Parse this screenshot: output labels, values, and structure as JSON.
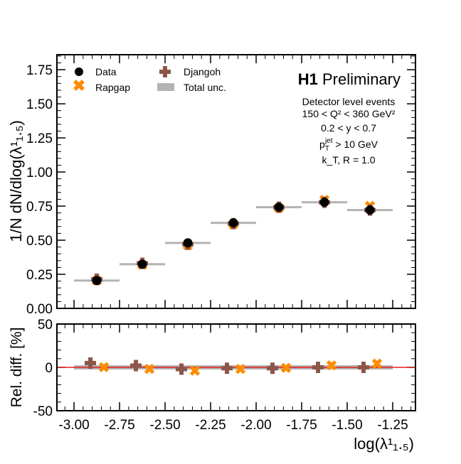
{
  "chart_data": {
    "type": "scatter",
    "title": "H1 Preliminary",
    "title_bold": "H1",
    "title_rest": "Preliminary",
    "annotations": [
      "Detector level events",
      "150 < Q² < 360 GeV²",
      "0.2 < y < 0.7",
      "p_T^jet > 10 GeV",
      "k_T, R = 1.0"
    ],
    "xlabel": "log(λ¹₁.₅)",
    "ylabel": "1/N dN/dlog(λ¹₁.₅)",
    "ratio_ylabel": "Rel. diff. [%]",
    "xlim": [
      -3.094,
      -1.125
    ],
    "ylim": [
      0,
      1.86
    ],
    "ratio_ylim": [
      -50,
      50
    ],
    "xticks": [
      "-3.00",
      "-2.75",
      "-2.50",
      "-2.25",
      "-2.00",
      "-1.75",
      "-1.50",
      "-1.25"
    ],
    "xtick_values": [
      -3.0,
      -2.75,
      -2.5,
      -2.25,
      -2.0,
      -1.75,
      -1.5,
      -1.25
    ],
    "yticks": [
      "0.00",
      "0.25",
      "0.50",
      "0.75",
      "1.00",
      "1.25",
      "1.50",
      "1.75"
    ],
    "ytick_values": [
      0,
      0.25,
      0.5,
      0.75,
      1.0,
      1.25,
      1.5,
      1.75
    ],
    "ratio_yticks": [
      "50",
      "0",
      "-50"
    ],
    "ratio_ytick_values": [
      50,
      0,
      -50
    ],
    "bin_edges": [
      -3.0,
      -2.75,
      -2.5,
      -2.25,
      -2.0,
      -1.75,
      -1.5,
      -1.25
    ],
    "legend": {
      "placement": "top-left",
      "entries": [
        "Data",
        "Rapgap",
        "Djangoh",
        "Total unc."
      ]
    },
    "series": [
      {
        "name": "Data",
        "color": "#000000",
        "values": [
          0.204,
          0.324,
          0.48,
          0.627,
          0.742,
          0.778,
          0.721
        ]
      },
      {
        "name": "Djangoh",
        "color": "#8c564b",
        "values": [
          0.214,
          0.331,
          0.47,
          0.621,
          0.742,
          0.778,
          0.721
        ],
        "rel_diff": [
          5,
          2,
          -2,
          -1,
          -1,
          0,
          0
        ]
      },
      {
        "name": "Rapgap",
        "color": "#ff8c00",
        "values": [
          0.204,
          0.318,
          0.461,
          0.615,
          0.735,
          0.794,
          0.75
        ],
        "rel_diff": [
          0,
          -2,
          -4,
          -2,
          -1,
          2,
          4
        ]
      }
    ],
    "total_unc_color": "#b3b3b3",
    "reference_line_color": "#e8201a"
  }
}
